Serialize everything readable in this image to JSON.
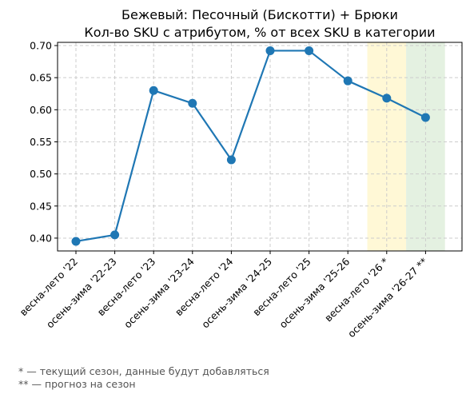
{
  "chart_data": {
    "type": "line",
    "title": "Бежевый: Песочный (Бискотти) + Брюки",
    "subtitle": "Кол-во SKU с атрибутом, % от всех SKU в категории",
    "xlabel": "",
    "ylabel": "",
    "categories": [
      "весна-лето '22",
      "осень-зима '22-23",
      "весна-лето '23",
      "осень-зима '23-24",
      "весна-лето '24",
      "осень-зима '24-25",
      "весна-лето '25",
      "осень-зима '25-26",
      "весна-лето '26 *",
      "осень-зима '26-27 **"
    ],
    "series": [
      {
        "values": [
          0.395,
          0.405,
          0.63,
          0.61,
          0.522,
          0.692,
          0.692,
          0.645,
          0.618,
          0.588
        ],
        "color": "#1f77b4"
      }
    ],
    "ylim": [
      0.38,
      0.705
    ],
    "yticks": [
      "0.40",
      "0.45",
      "0.50",
      "0.55",
      "0.60",
      "0.65",
      "0.70"
    ],
    "grid": true,
    "highlight_bands": [
      {
        "category": "весна-лето '26 *",
        "color": "#fff8d6"
      },
      {
        "category": "осень-зима '26-27 **",
        "color": "#e4f1e1"
      }
    ]
  },
  "footnotes": [
    "* — текущий сезон, данные будут добавляться",
    "** — прогноз на сезон"
  ]
}
